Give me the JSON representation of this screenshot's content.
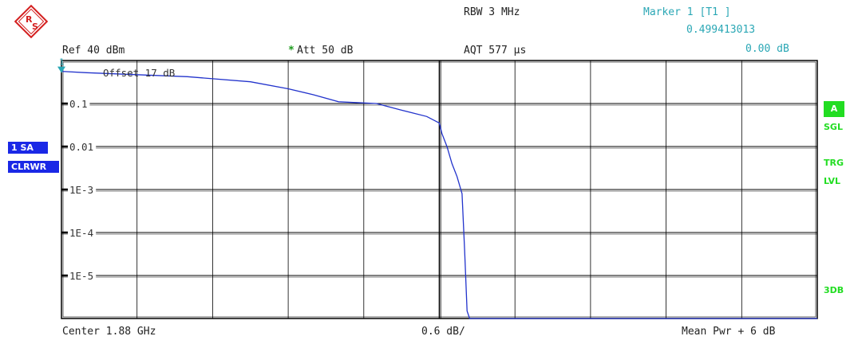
{
  "header": {
    "rbw": "RBW 3 MHz",
    "marker_label": "Marker 1 [T1 ]",
    "marker_x": "0.499413013",
    "marker_y": "0.00 dB",
    "ref": "Ref  40 dBm",
    "att_star": "*",
    "att": "Att  50 dB",
    "aqt": "AQT 577 µs",
    "offset": "Offset  17 dB",
    "marker_num": "1"
  },
  "footer": {
    "center": "Center 1.88 GHz",
    "scale": "0.6 dB/",
    "mean": "Mean Pwr + 6 dB"
  },
  "left_badges": {
    "trace": "1 SA",
    "mode": "CLRWR"
  },
  "right_indicators": {
    "a": "A",
    "sgl": "SGL",
    "trg": "TRG",
    "lvl": "LVL",
    "db3": "3DB"
  },
  "colors": {
    "trace": "#2233cc",
    "marker": "#2aa7b5",
    "grid": "#000000",
    "green": "#22dd22",
    "blue_badge": "#1a28e6"
  },
  "logo": {
    "text": "R&S",
    "icon": "rohde-schwarz-logo-icon"
  },
  "chart_data": {
    "type": "line",
    "title": "",
    "xlabel": "",
    "ylabel": "",
    "x_unit": "dB",
    "x_ticks": [
      "Center 1.88 GHz",
      "0.6 dB/",
      "Mean Pwr + 6 dB"
    ],
    "xlim": [
      -3.0,
      3.0
    ],
    "y_scale": "log",
    "ylim": [
      1e-06,
      1
    ],
    "y_tick_labels": [
      "0.1",
      "0.01",
      "1E-3",
      "1E-4",
      "1E-5"
    ],
    "y_tick_values": [
      0.1,
      0.01,
      0.001,
      0.0001,
      1e-05
    ],
    "grid": true,
    "series": [
      {
        "x": [
          -3.0,
          -2.8,
          -2.5,
          -2.0,
          -1.5,
          -1.2,
          -1.0,
          -0.8,
          -0.5,
          -0.3,
          -0.1,
          0.0,
          0.02,
          0.06,
          0.1,
          0.14,
          0.18,
          0.2,
          0.22,
          0.24,
          3.0
        ],
        "y": [
          0.56,
          0.52,
          0.48,
          0.42,
          0.32,
          0.22,
          0.16,
          0.11,
          0.1,
          0.07,
          0.05,
          0.035,
          0.02,
          0.01,
          0.004,
          0.002,
          0.0008,
          4e-05,
          1.5e-06,
          1e-06,
          1e-06
        ]
      }
    ],
    "marker": {
      "label": "1",
      "x": -3.0,
      "y": 0.56
    }
  }
}
